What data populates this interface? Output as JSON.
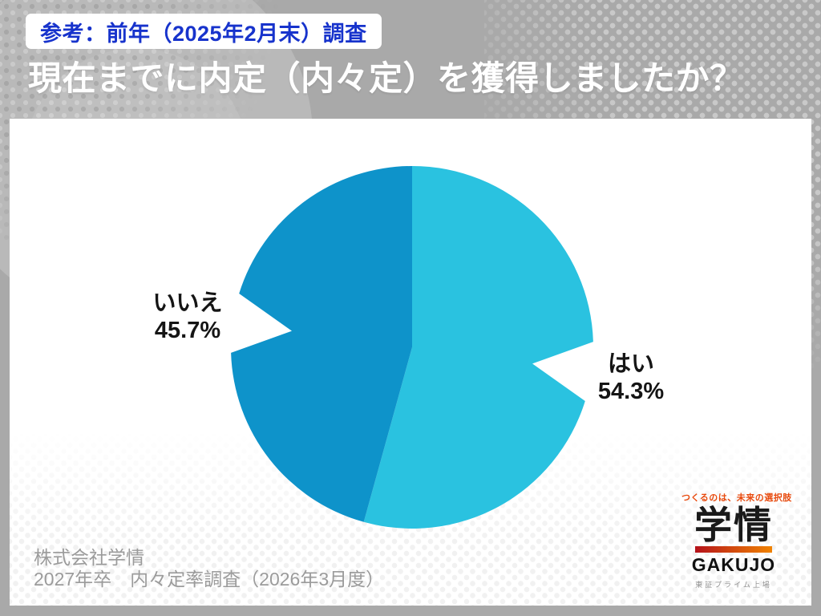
{
  "badge": {
    "label": "参考：前年（2025年2月末）調査"
  },
  "title": "現在までに内定（内々定）を獲得しましたか？",
  "chart_data": {
    "type": "pie",
    "title": "現在までに内定（内々定）を獲得しましたか？",
    "start_angle_deg": 0,
    "direction": "clockwise",
    "slices": [
      {
        "label": "はい",
        "value": 54.3,
        "display": "54.3%",
        "color": "#2ac2e0"
      },
      {
        "label": "いいえ",
        "value": 45.7,
        "display": "45.7%",
        "color": "#0e93ca"
      }
    ],
    "notch": {
      "half_angle_deg": 9.5,
      "apex_radius_ratio": 0.67
    },
    "legend": "none",
    "labels_position": "outside"
  },
  "footer": {
    "line1": "株式会社学情",
    "line2": "2027年卒　内々定率調査（2026年3月度）"
  },
  "logo": {
    "tagline": "つくるのは、未来の選択肢",
    "kanji": "学情",
    "name": "GAKUJO",
    "listing": "東証プライム上場"
  },
  "colors": {
    "background_gray": "#a9a9a9",
    "panel_white": "#ffffff",
    "badge_text_blue": "#1733cc",
    "title_white": "#ffffff",
    "slice_yes": "#2ac2e0",
    "slice_no": "#0e93ca",
    "label_text": "#151515",
    "source_text": "#9b9b9b",
    "logo_tagline_orange": "#e84a0e",
    "logo_gradient_left": "#b5121b",
    "logo_gradient_right": "#f08300",
    "logo_listing_gray": "#8d8d8d"
  }
}
